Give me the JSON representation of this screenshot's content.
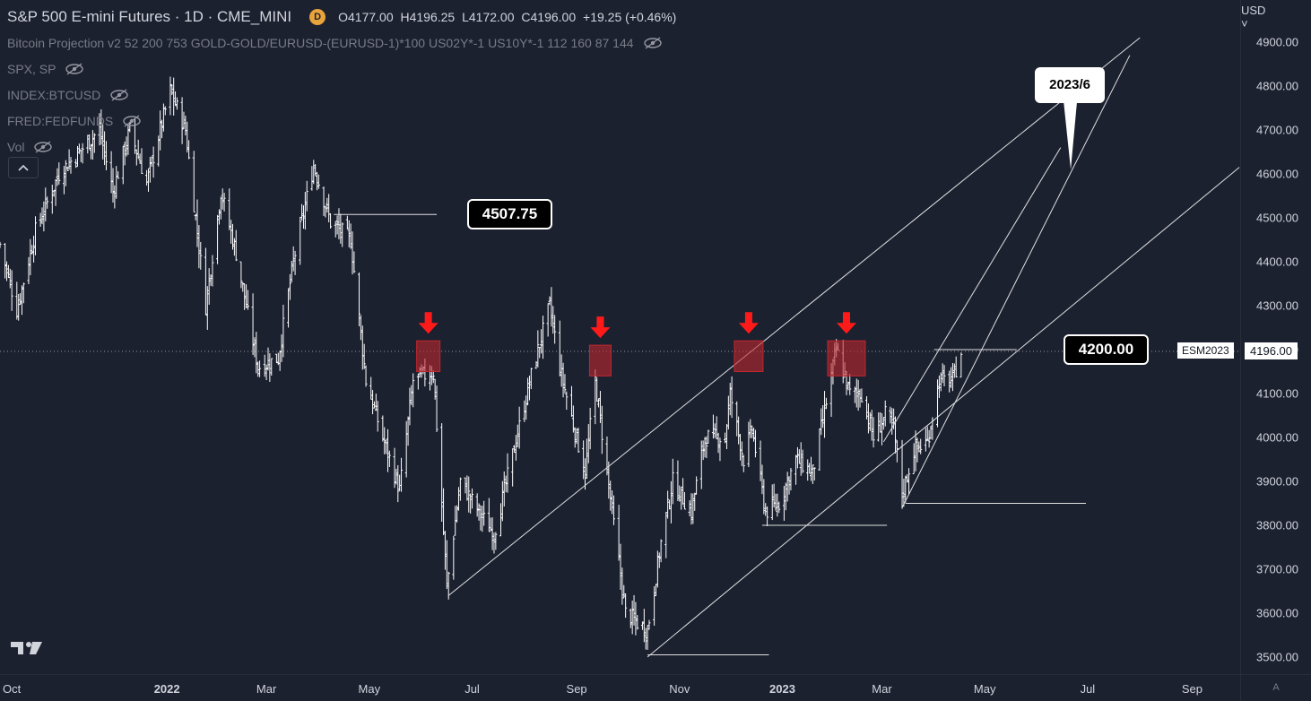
{
  "header": {
    "title": "S&P 500 E-mini Futures · 1D · CME_MINI",
    "badge": "D",
    "open": "O4177.00",
    "high": "H4196.25",
    "low": "L4172.00",
    "close": "C4196.00",
    "change": "+19.25 (+0.46%)"
  },
  "indicators": [
    {
      "label": "Bitcoin Projection v2 52 200 753 GOLD-GOLD/EURUSD-(EURUSD-1)*100 US02Y*-1 US10Y*-1 112 160 87 144",
      "icon": "eye-off-icon"
    },
    {
      "label": "SPX, SP",
      "icon": "eye-off-icon"
    },
    {
      "label": "INDEX:BTCUSD",
      "icon": "eye-off-icon"
    },
    {
      "label": "FRED:FEDFUNDS",
      "icon": "eye-off-icon"
    },
    {
      "label": "Vol",
      "icon": "eye-off-icon"
    }
  ],
  "collapse_icon": "chevron-up-icon",
  "currency": "USD",
  "price_label": "4196.00",
  "symbol_label": "ESM2023",
  "axis_corner": "A",
  "colors": {
    "background": "#1c2130",
    "bars": "#ffffff",
    "box": "#c0272d",
    "arrow": "#ff1a1a"
  },
  "chart_data": {
    "type": "ohlc",
    "title": "S&P 500 E-mini Futures · 1D · CME_MINI",
    "ylim": [
      3480,
      4950
    ],
    "y_ticks": [
      "4900.00",
      "4800.00",
      "4700.00",
      "4600.00",
      "4500.00",
      "4400.00",
      "4300.00",
      "4200.00",
      "4100.00",
      "4000.00",
      "3900.00",
      "3800.00",
      "3700.00",
      "3600.00",
      "3500.00"
    ],
    "x_range": [
      "2021-09-24",
      "2023-09-30"
    ],
    "x_ticks": [
      {
        "label": "Oct",
        "date": "2021-10-01",
        "bold": false
      },
      {
        "label": "2022",
        "date": "2022-01-01",
        "bold": true
      },
      {
        "label": "Mar",
        "date": "2022-03-01",
        "bold": false
      },
      {
        "label": "May",
        "date": "2022-05-01",
        "bold": false
      },
      {
        "label": "Jul",
        "date": "2022-07-01",
        "bold": false
      },
      {
        "label": "Sep",
        "date": "2022-09-01",
        "bold": false
      },
      {
        "label": "Nov",
        "date": "2022-11-01",
        "bold": false
      },
      {
        "label": "2023",
        "date": "2023-01-01",
        "bold": true
      },
      {
        "label": "Mar",
        "date": "2023-03-01",
        "bold": false
      },
      {
        "label": "May",
        "date": "2023-05-01",
        "bold": false
      },
      {
        "label": "Jul",
        "date": "2023-07-01",
        "bold": false
      },
      {
        "label": "Sep",
        "date": "2023-09-01",
        "bold": false
      }
    ],
    "price_path": [
      [
        "2021-09-24",
        4440
      ],
      [
        "2021-10-04",
        4290
      ],
      [
        "2021-10-15",
        4470
      ],
      [
        "2021-10-29",
        4600
      ],
      [
        "2021-11-10",
        4650
      ],
      [
        "2021-11-22",
        4700
      ],
      [
        "2021-11-30",
        4560
      ],
      [
        "2021-12-10",
        4700
      ],
      [
        "2021-12-20",
        4580
      ],
      [
        "2022-01-03",
        4790
      ],
      [
        "2022-01-12",
        4700
      ],
      [
        "2022-01-24",
        4300
      ],
      [
        "2022-02-02",
        4560
      ],
      [
        "2022-02-11",
        4420
      ],
      [
        "2022-02-24",
        4160
      ],
      [
        "2022-03-08",
        4180
      ],
      [
        "2022-03-17",
        4400
      ],
      [
        "2022-03-29",
        4620
      ],
      [
        "2022-04-08",
        4490
      ],
      [
        "2022-04-20",
        4450
      ],
      [
        "2022-04-29",
        4130
      ],
      [
        "2022-05-09",
        4000
      ],
      [
        "2022-05-19",
        3880
      ],
      [
        "2022-05-27",
        4130
      ],
      [
        "2022-06-08",
        4150
      ],
      [
        "2022-06-16",
        3660
      ],
      [
        "2022-06-24",
        3900
      ],
      [
        "2022-07-05",
        3830
      ],
      [
        "2022-07-14",
        3780
      ],
      [
        "2022-07-25",
        3960
      ],
      [
        "2022-08-05",
        4140
      ],
      [
        "2022-08-16",
        4300
      ],
      [
        "2022-08-23",
        4140
      ],
      [
        "2022-09-06",
        3920
      ],
      [
        "2022-09-12",
        4130
      ],
      [
        "2022-09-20",
        3890
      ],
      [
        "2022-09-30",
        3600
      ],
      [
        "2022-10-13",
        3560
      ],
      [
        "2022-10-21",
        3760
      ],
      [
        "2022-10-28",
        3900
      ],
      [
        "2022-11-08",
        3830
      ],
      [
        "2022-11-16",
        4000
      ],
      [
        "2022-11-28",
        4000
      ],
      [
        "2022-12-01",
        4100
      ],
      [
        "2022-12-09",
        3950
      ],
      [
        "2022-12-14",
        4020
      ],
      [
        "2022-12-22",
        3830
      ],
      [
        "2022-12-30",
        3850
      ],
      [
        "2023-01-09",
        3950
      ],
      [
        "2023-01-19",
        3920
      ],
      [
        "2023-01-27",
        4080
      ],
      [
        "2023-02-02",
        4200
      ],
      [
        "2023-02-10",
        4100
      ],
      [
        "2023-02-17",
        4100
      ],
      [
        "2023-02-24",
        4000
      ],
      [
        "2023-03-03",
        4050
      ],
      [
        "2023-03-08",
        4020
      ],
      [
        "2023-03-13",
        3870
      ],
      [
        "2023-03-20",
        3970
      ],
      [
        "2023-03-28",
        3990
      ],
      [
        "2023-04-04",
        4130
      ],
      [
        "2023-04-12",
        4130
      ],
      [
        "2023-04-17",
        4196
      ]
    ],
    "annotations": {
      "price_callouts": [
        {
          "text": "4507.75",
          "price": 4507.75,
          "from_date": "2022-04-10"
        },
        {
          "text": "4200.00",
          "price": 4200,
          "from_date": "2023-04-01"
        }
      ],
      "date_callout": {
        "text": "2023/6",
        "target_date": "2023-06-21",
        "target_price": 4610
      },
      "resistance_boxes": [
        {
          "date": "2022-06-05",
          "price_low": 4150,
          "price_high": 4220
        },
        {
          "date": "2022-09-15",
          "price_low": 4140,
          "price_high": 4210
        },
        {
          "date": "2022-12-12",
          "price_low": 4150,
          "price_high": 4220
        },
        {
          "date": "2023-02-08",
          "price_low": 4140,
          "price_high": 4220
        }
      ],
      "trend_lines": [
        {
          "from": [
            "2022-06-17",
            3640
          ],
          "to": [
            "2023-08-01",
            4910
          ]
        },
        {
          "from": [
            "2022-10-13",
            3500
          ],
          "to": [
            "2023-09-29",
            4615
          ]
        },
        {
          "from": [
            "2023-03-13",
            3840
          ],
          "to": [
            "2023-07-26",
            4870
          ]
        },
        {
          "from": [
            "2023-03-02",
            3990
          ],
          "to": [
            "2023-06-15",
            4660
          ]
        },
        {
          "from": [
            "2022-10-13",
            3505
          ],
          "to": [
            "2022-12-24",
            3505
          ]
        },
        {
          "from": [
            "2022-12-20",
            3800
          ],
          "to": [
            "2023-03-04",
            3800
          ]
        },
        {
          "from": [
            "2023-03-15",
            3850
          ],
          "to": [
            "2023-06-30",
            3850
          ]
        },
        {
          "from": [
            "2023-04-01",
            4200
          ],
          "to": [
            "2023-05-20",
            4200
          ]
        },
        {
          "from": [
            "2022-04-10",
            4507.75
          ],
          "to": [
            "2022-06-10",
            4507.75
          ]
        }
      ]
    }
  }
}
